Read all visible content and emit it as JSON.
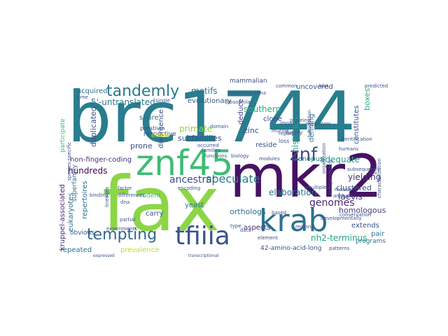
{
  "words": [
    {
      "text": "brc1744",
      "color": "#287d8e"
    },
    {
      "text": "fax",
      "color": "#8bd646"
    },
    {
      "text": "mkr2",
      "color": "#471164"
    },
    {
      "text": "znf45",
      "color": "#3ebc74"
    },
    {
      "text": "krab",
      "color": "#2d708e"
    },
    {
      "text": "tfiiia",
      "color": "#3b528b"
    },
    {
      "text": "tempting",
      "color": "#31688e"
    },
    {
      "text": "tandemly",
      "color": "#2a788e"
    },
    {
      "text": "znf",
      "color": "#3b528b"
    },
    {
      "text": "5'-untranslated",
      "color": "#2a788e"
    },
    {
      "text": "non-finger-coding",
      "color": "#46337f"
    },
    {
      "text": "speculate",
      "color": "#287c8e"
    },
    {
      "text": "ancestral",
      "color": "#3e4a89"
    },
    {
      "text": "elaboration",
      "color": "#2c728e"
    },
    {
      "text": "genomes",
      "color": "#482374"
    },
    {
      "text": "homologous",
      "color": "#443b84"
    },
    {
      "text": "nh2-terminus",
      "color": "#20a386"
    },
    {
      "text": "kruppel-associated",
      "color": "#482878"
    },
    {
      "text": "eukaryotes",
      "color": "#31688e"
    },
    {
      "text": "duplicated",
      "color": "#3b528b"
    },
    {
      "text": "hundreds",
      "color": "#440154"
    },
    {
      "text": "yielding",
      "color": "#472d7b"
    },
    {
      "text": "adequate",
      "color": "#1fa088"
    },
    {
      "text": "histories",
      "color": "#22a884"
    },
    {
      "text": "primate",
      "color": "#8bd646"
    },
    {
      "text": "subfamilies",
      "color": "#3b528b"
    },
    {
      "text": "southern",
      "color": "#2ab07f"
    },
    {
      "text": "zinc",
      "color": "#3e4a89"
    },
    {
      "text": "deduce",
      "color": "#424086"
    },
    {
      "text": "evolutionary",
      "color": "#39568c"
    },
    {
      "text": "motifs",
      "color": "#2a788e"
    },
    {
      "text": "acquired",
      "color": "#2c728e"
    },
    {
      "text": "prone",
      "color": "#3b528b"
    },
    {
      "text": "divergence",
      "color": "#3e4a89"
    },
    {
      "text": "share",
      "color": "#2c728e"
    },
    {
      "text": "respective",
      "color": "#3b528b"
    },
    {
      "text": "repertoires",
      "color": "#2d708e"
    },
    {
      "text": "superfamily",
      "color": "#2e6f8e"
    },
    {
      "text": "rodent",
      "color": "#3fbc73"
    },
    {
      "text": "carry",
      "color": "#39568c"
    },
    {
      "text": "yeast",
      "color": "#2a788e"
    },
    {
      "text": "orthologs",
      "color": "#2d708e"
    },
    {
      "text": "aspects",
      "color": "#472a7a"
    },
    {
      "text": "42-amino-acid-long",
      "color": "#3b528b"
    },
    {
      "text": "laevis",
      "color": "#46327e"
    },
    {
      "text": "clustered",
      "color": "#3b528b"
    },
    {
      "text": "xenopus",
      "color": "#2a788e"
    },
    {
      "text": "defining",
      "color": "#2a788e"
    },
    {
      "text": "reside",
      "color": "#3b528b"
    },
    {
      "text": "clone",
      "color": "#3e4a89"
    },
    {
      "text": "boxes",
      "color": "#2ab07f"
    },
    {
      "text": "constitutes",
      "color": "#3b528b"
    },
    {
      "text": "overlapping",
      "color": "#2c728e"
    },
    {
      "text": "uncovered",
      "color": "#3b528b"
    },
    {
      "text": "mammalian",
      "color": "#3e4a89"
    },
    {
      "text": "extends",
      "color": "#3b528b"
    },
    {
      "text": "pair",
      "color": "#2c728e"
    },
    {
      "text": "programs",
      "color": "#2c728e"
    },
    {
      "text": "repeated",
      "color": "#2c728e"
    },
    {
      "text": "prevalence",
      "color": "#b8de29"
    },
    {
      "text": "obvious",
      "color": "#39568c"
    },
    {
      "text": "entire",
      "color": "#d8e219"
    },
    {
      "text": "participate",
      "color": "#3fbc73"
    },
    {
      "text": "putative",
      "color": "#3b528b"
    },
    {
      "text": "highly",
      "color": "#3b528b"
    },
    {
      "text": "loss",
      "color": "#3b528b"
    },
    {
      "text": "murine",
      "color": "#3e4a89"
    },
    {
      "text": "domain",
      "color": "#3b528b"
    },
    {
      "text": "occurred",
      "color": "#3b528b"
    },
    {
      "text": "encoding",
      "color": "#3b528b"
    },
    {
      "text": "binding",
      "color": "#3b528b"
    },
    {
      "text": "differences",
      "color": "#3b528b"
    },
    {
      "text": "dna",
      "color": "#3b528b"
    },
    {
      "text": "partial",
      "color": "#3b528b"
    },
    {
      "text": "modules",
      "color": "#3b528b"
    },
    {
      "text": "element",
      "color": "#3b528b"
    },
    {
      "text": "based",
      "color": "#3b528b"
    },
    {
      "text": "regions",
      "color": "#3b528b"
    },
    {
      "text": "data",
      "color": "#3b528b"
    },
    {
      "text": "type",
      "color": "#3b528b"
    },
    {
      "text": "biology",
      "color": "#3b528b"
    },
    {
      "text": "families",
      "color": "#3b528b"
    },
    {
      "text": "functions",
      "color": "#3b528b"
    },
    {
      "text": "proteins",
      "color": "#3b528b"
    },
    {
      "text": "identification",
      "color": "#3b528b"
    },
    {
      "text": "humans",
      "color": "#3b528b"
    },
    {
      "text": "subsequently",
      "color": "#3b528b"
    },
    {
      "text": "developmentally",
      "color": "#3b528b"
    },
    {
      "text": "multiple",
      "color": "#3b528b"
    },
    {
      "text": "conservation",
      "color": "#3b528b"
    },
    {
      "text": "mouse",
      "color": "#3b528b"
    },
    {
      "text": "analysis",
      "color": "#3b528b"
    },
    {
      "text": "patterns",
      "color": "#3b528b"
    },
    {
      "text": "predicted",
      "color": "#3b528b"
    },
    {
      "text": "regulators",
      "color": "#3b528b"
    },
    {
      "text": "common",
      "color": "#3b528b"
    },
    {
      "text": "cdna",
      "color": "#3b528b"
    },
    {
      "text": "sequence",
      "color": "#3b528b"
    },
    {
      "text": "drosophila",
      "color": "#3b528b"
    },
    {
      "text": "time",
      "color": "#3b528b"
    },
    {
      "text": "single",
      "color": "#3b528b"
    },
    {
      "text": "impact",
      "color": "#3b528b"
    },
    {
      "text": "report",
      "color": "#3b528b"
    },
    {
      "text": "transcriptional",
      "color": "#3b528b"
    },
    {
      "text": "expressed",
      "color": "#3b528b"
    },
    {
      "text": "experiments",
      "color": "#3b528b"
    },
    {
      "text": "lineages",
      "color": "#3b528b"
    },
    {
      "text": "factor",
      "color": "#3b528b"
    },
    {
      "text": "hybridization",
      "color": "#3b528b"
    },
    {
      "text": "characterization",
      "color": "#3b528b"
    },
    {
      "text": "species-specific",
      "color": "#3b528b"
    },
    {
      "text": "independently",
      "color": "#3b528b"
    },
    {
      "text": "organization",
      "color": "#3b528b"
    },
    {
      "text": "blot",
      "color": "#3b528b"
    },
    {
      "text": "size",
      "color": "#3b528b"
    }
  ]
}
